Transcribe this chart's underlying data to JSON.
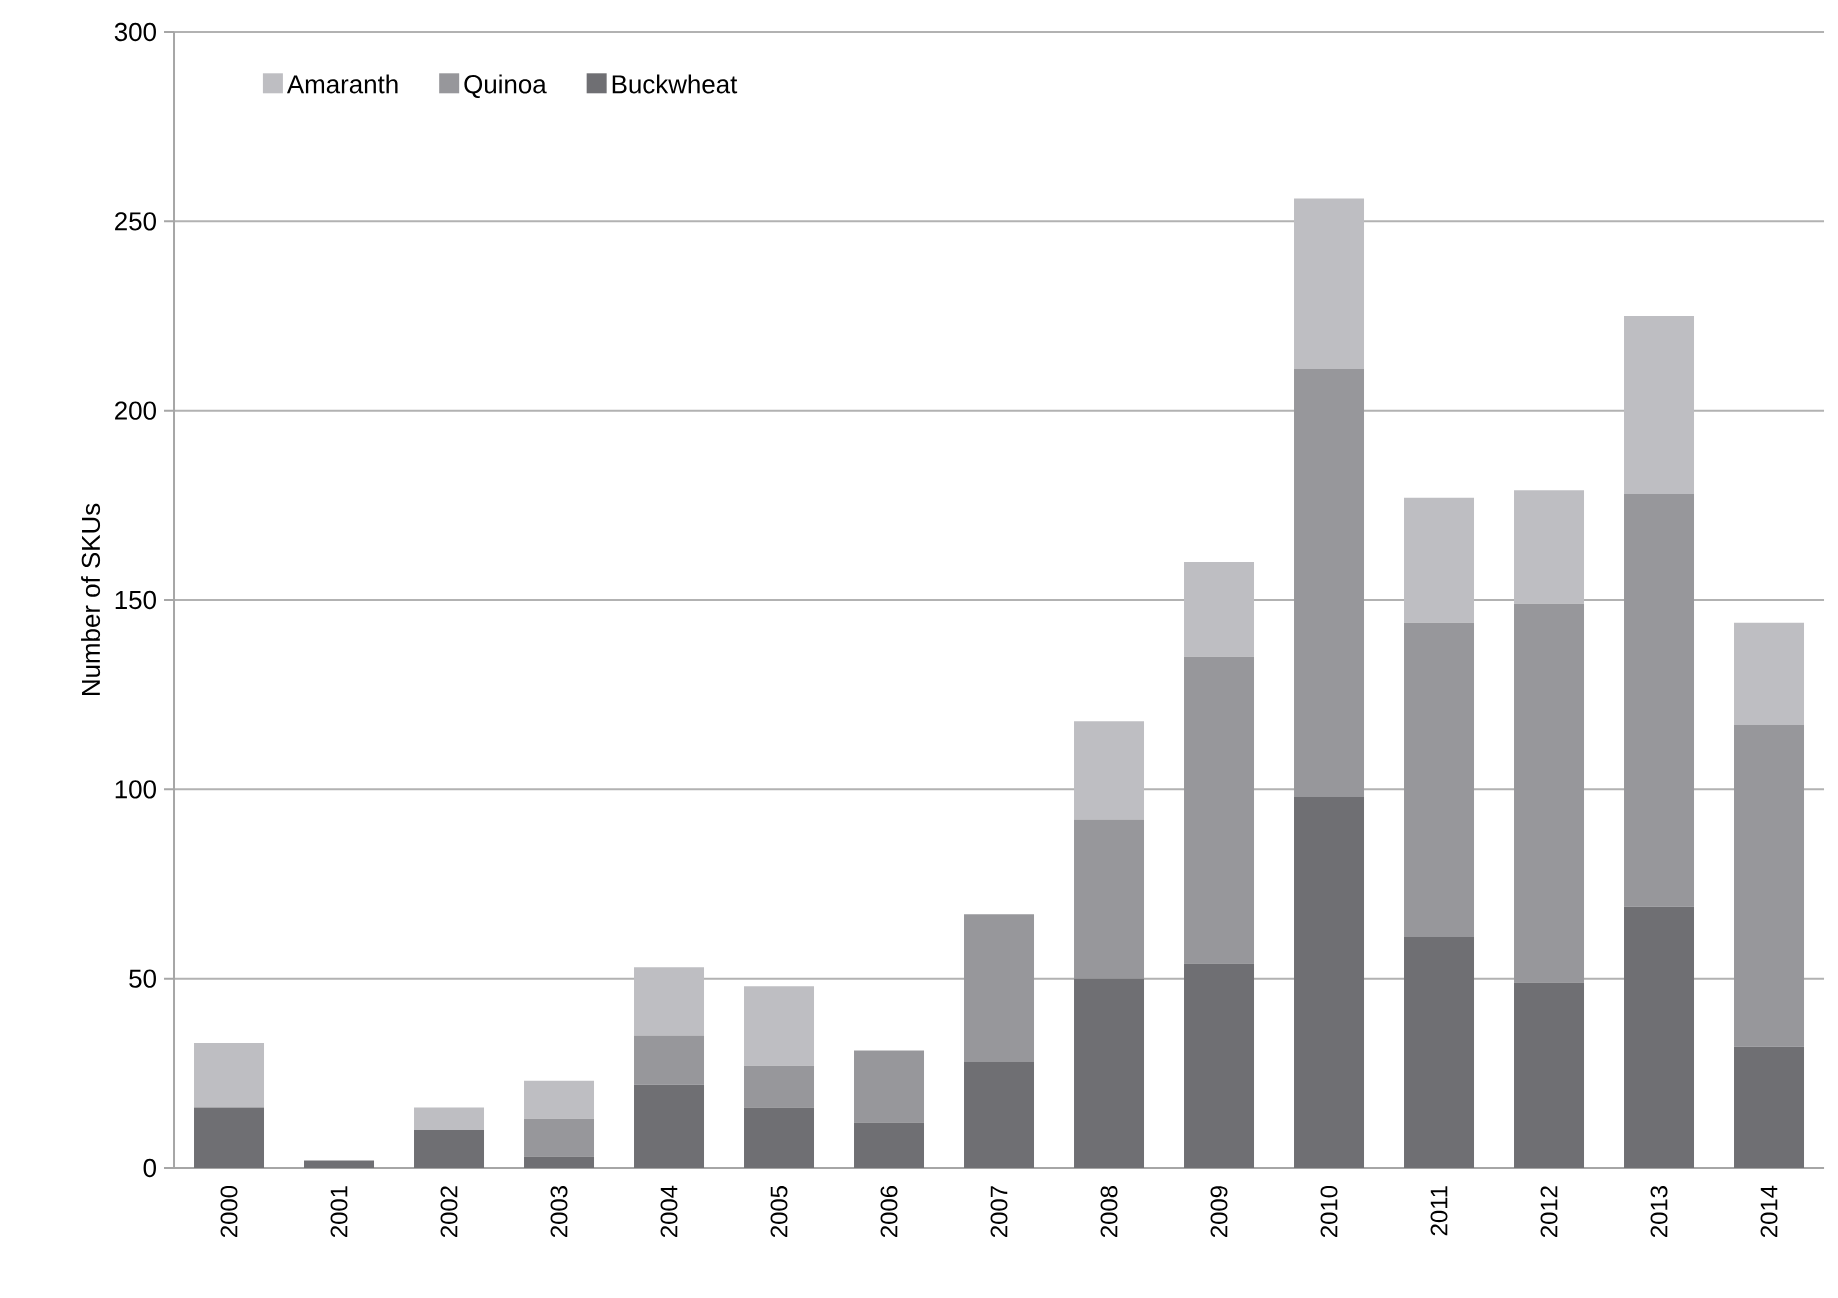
{
  "chart_data": {
    "type": "bar",
    "stacked": true,
    "ylabel": "Number of SKUs",
    "categories": [
      "2000",
      "2001",
      "2002",
      "2003",
      "2004",
      "2005",
      "2006",
      "2007",
      "2008",
      "2009",
      "2010",
      "2011",
      "2012",
      "2013",
      "2014"
    ],
    "series": [
      {
        "name": "Buckwheat",
        "color": "#6f6f73",
        "values": [
          16,
          2,
          10,
          3,
          22,
          16,
          12,
          28,
          50,
          54,
          98,
          61,
          49,
          69,
          32
        ]
      },
      {
        "name": "Quinoa",
        "color": "#97979b",
        "values": [
          0,
          0,
          0,
          10,
          13,
          11,
          19,
          39,
          42,
          81,
          113,
          83,
          100,
          109,
          85
        ]
      },
      {
        "name": "Amaranth",
        "color": "#bebec2",
        "values": [
          17,
          0,
          6,
          10,
          18,
          21,
          0,
          0,
          26,
          25,
          45,
          33,
          30,
          47,
          27
        ]
      }
    ],
    "ylim": [
      0,
      300
    ],
    "yticks": [
      0,
      50,
      100,
      150,
      200,
      250,
      300
    ],
    "grid": "y",
    "legend": "top left"
  }
}
